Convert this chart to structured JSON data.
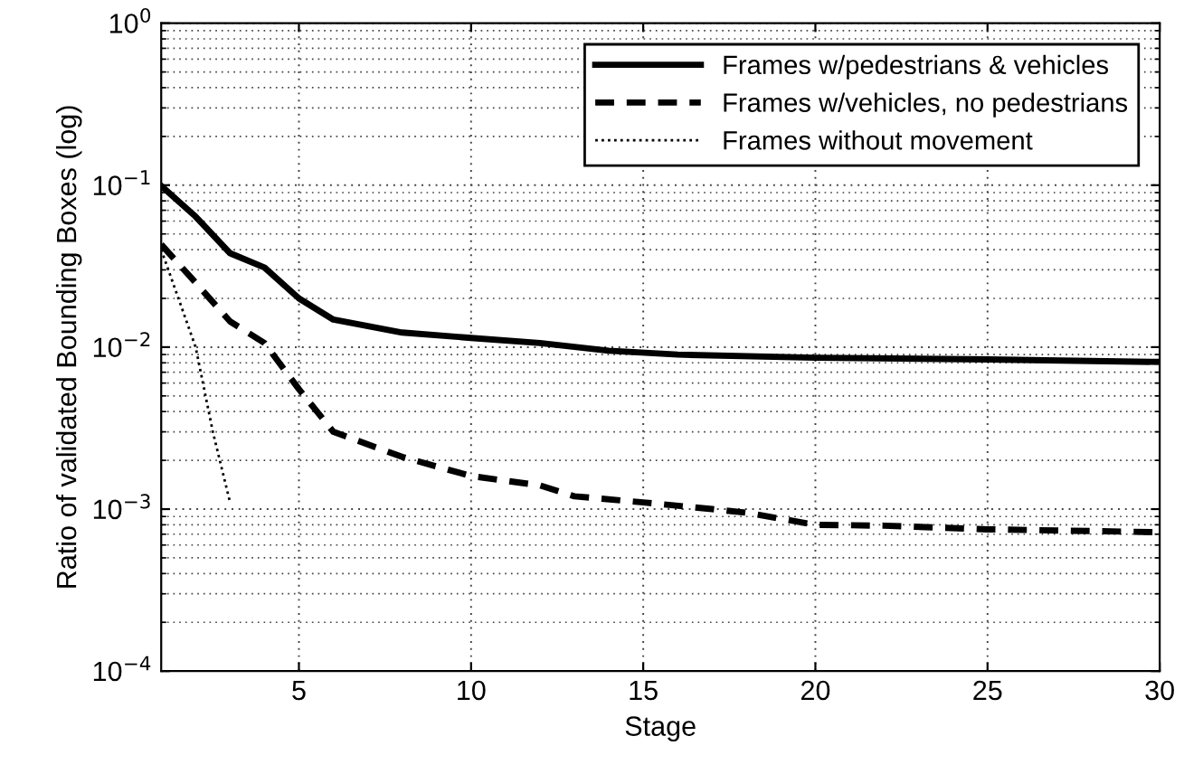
{
  "chart_data": {
    "type": "line",
    "xlabel": "Stage",
    "ylabel": "Ratio of validated Bounding Boxes (log)",
    "log": "y",
    "xlim": [
      1,
      30
    ],
    "xticks": [
      5,
      10,
      15,
      20,
      25,
      30
    ],
    "ylim": [
      0.0001,
      1
    ],
    "yticks": [
      {
        "value": 0.0001,
        "label": "10$^{−4}$"
      },
      {
        "value": 0.001,
        "label": "10$^{−3}$"
      },
      {
        "value": 0.01,
        "label": "10$^{−2}$"
      },
      {
        "value": 0.1,
        "label": "10$^{−1}$"
      },
      {
        "value": 1,
        "label": "10$^{0}$"
      }
    ],
    "grid": true,
    "legend": "top right",
    "marker": "none",
    "series": [
      {
        "name": "Frames w/pedestrians & vehicles",
        "color": "#000000",
        "line_style": "solid",
        "x": [
          1,
          2,
          3,
          4,
          5,
          6,
          8,
          10,
          12,
          14,
          16,
          20,
          25,
          30
        ],
        "values": [
          0.099,
          0.064,
          0.038,
          0.031,
          0.02,
          0.0148,
          0.0123,
          0.0114,
          0.0106,
          0.0095,
          0.009,
          0.0086,
          0.0084,
          0.0081
        ]
      },
      {
        "name": "Frames w/vehicles, no pedestrians",
        "color": "#000000",
        "line_style": "dashed",
        "x": [
          1,
          2,
          3,
          4,
          5,
          6,
          8,
          10,
          12,
          13,
          15,
          17,
          18,
          20,
          22,
          25,
          30
        ],
        "values": [
          0.043,
          0.025,
          0.0144,
          0.0106,
          0.0055,
          0.003,
          0.0021,
          0.0016,
          0.0014,
          0.0012,
          0.0011,
          0.001,
          0.00095,
          0.0008,
          0.00079,
          0.00075,
          0.00072
        ]
      },
      {
        "name": "Frames without movement",
        "color": "#000000",
        "line_style": "dotted",
        "x": [
          1,
          1.5,
          2,
          2.5,
          3
        ],
        "values": [
          0.04,
          0.02,
          0.01,
          0.003,
          0.0011
        ]
      }
    ]
  }
}
